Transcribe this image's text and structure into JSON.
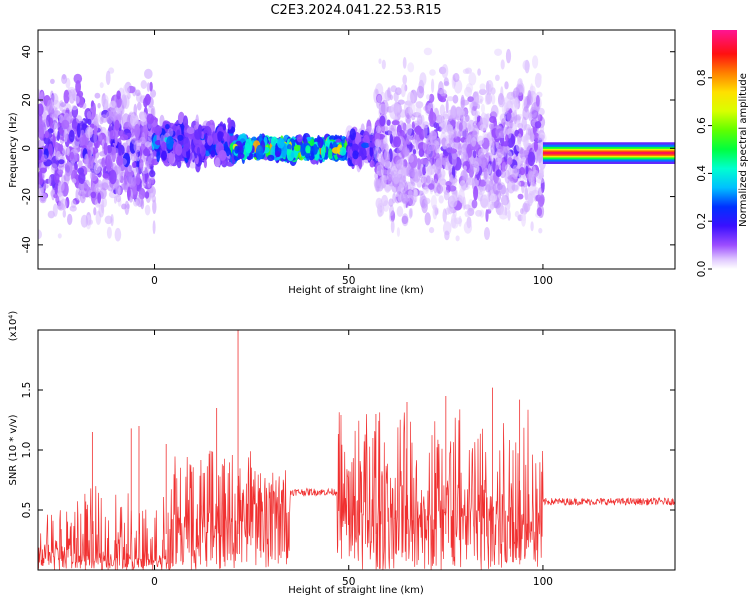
{
  "title": "C2E3.2024.041.22.53.R15",
  "colors": {
    "snr_line": "#f03030",
    "frame": "#000000",
    "background": "#ffffff"
  },
  "chart_data": [
    {
      "type": "heatmap",
      "title": "",
      "xlabel": "Height of straight line (km)",
      "ylabel": "Frequency (Hz)",
      "xlim": [
        -30,
        134
      ],
      "ylim": [
        -50,
        49
      ],
      "xticks": [
        0,
        50,
        100
      ],
      "yticks": [
        -40,
        -20,
        0,
        20,
        40
      ],
      "grid": false,
      "colorbar": {
        "label": "Normalized spectral amplitude",
        "range": [
          0,
          1
        ],
        "ticks": [
          "0.0",
          "0.2",
          "0.4",
          "0.6",
          "0.8"
        ],
        "colormap": [
          "#ffffff",
          "#e8d0ff",
          "#8a2be2",
          "#3010ff",
          "#0000ff",
          "#00bfff",
          "#00ffc0",
          "#00ff00",
          "#c0ff00",
          "#ffff00",
          "#ff8000",
          "#ff0000",
          "#ff1493"
        ]
      },
      "description_segments": [
        {
          "x_range": [
            -30,
            0
          ],
          "center_hz": 0,
          "spread_hz": 40,
          "peak_amplitude": 0.2
        },
        {
          "x_range": [
            0,
            20
          ],
          "center_hz": 2,
          "spread_hz": 12,
          "peak_amplitude": 0.35
        },
        {
          "x_range": [
            20,
            50
          ],
          "center_hz": 0,
          "spread_hz": 5,
          "peak_amplitude": 0.85
        },
        {
          "x_range": [
            50,
            57
          ],
          "center_hz": 0,
          "spread_hz": 10,
          "peak_amplitude": 0.3
        },
        {
          "x_range": [
            57,
            100
          ],
          "center_hz": 0,
          "spread_hz": 45,
          "peak_amplitude": 0.15
        },
        {
          "x_range": [
            100,
            134
          ],
          "center_hz": -2,
          "spread_hz": 2,
          "peak_amplitude": 0.9
        }
      ]
    },
    {
      "type": "line",
      "title": "",
      "xlabel": "Height of straight line (km)",
      "ylabel": "SNR (10 * v/v)",
      "scale_note": "(x10⁴)",
      "xlim": [
        -30,
        134
      ],
      "ylim": [
        0,
        2.0
      ],
      "xticks": [
        0,
        50,
        100
      ],
      "yticks": [
        "0.5",
        "1.0",
        "1.5"
      ],
      "ytick_values": [
        0.5,
        1.0,
        1.5
      ],
      "grid": false,
      "series": [
        {
          "color": "#f03030",
          "segments": [
            {
              "x_range": [
                -30,
                -28
              ],
              "base": 0.1,
              "noise_max": 0.35
            },
            {
              "x_range": [
                -28,
                -20
              ],
              "base": 0.15,
              "noise_max": 0.5
            },
            {
              "x_range": [
                -20,
                5
              ],
              "base": 0.1,
              "noise_max": 0.7
            },
            {
              "x_range": [
                5,
                25
              ],
              "base": 0.4,
              "noise_max": 1.0
            },
            {
              "x_range": [
                25,
                35
              ],
              "base": 0.55,
              "noise_max": 0.85
            },
            {
              "x_range": [
                35,
                47
              ],
              "base": 0.65,
              "noise_max": 0.75
            },
            {
              "x_range": [
                47,
                100
              ],
              "base": 0.45,
              "noise_max": 1.35
            },
            {
              "x_range": [
                100,
                134
              ],
              "base": 0.57,
              "noise_max": 0.62
            }
          ],
          "spikes": [
            {
              "x": 21.5,
              "y": 2.0
            },
            {
              "x": 16,
              "y": 1.35
            },
            {
              "x": 87,
              "y": 1.52
            },
            {
              "x": 75,
              "y": 1.45
            },
            {
              "x": 65,
              "y": 1.4
            },
            {
              "x": 94,
              "y": 1.42
            },
            {
              "x": -16,
              "y": 1.15
            },
            {
              "x": -6,
              "y": 1.18
            },
            {
              "x": -4,
              "y": 1.2
            },
            {
              "x": 3,
              "y": 1.05
            },
            {
              "x": 57,
              "y": 1.3
            }
          ]
        }
      ]
    }
  ]
}
